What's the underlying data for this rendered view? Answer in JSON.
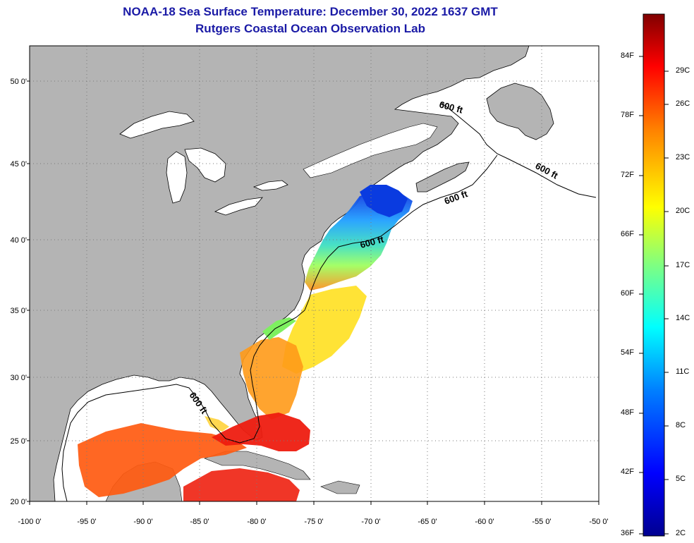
{
  "title_line1": "NOAA-18 Sea Surface Temperature:  December 30, 2022 1637 GMT",
  "title_line2": "Rutgers Coastal Ocean Observation Lab",
  "lat_ticks": [
    "50 0'",
    "45 0'",
    "40 0'",
    "35 0'",
    "30 0'",
    "25 0'",
    "20 0'"
  ],
  "lon_ticks": [
    "-100 0'",
    "-95 0'",
    "-90 0'",
    "-85 0'",
    "-80 0'",
    "-75 0'",
    "-70 0'",
    "-65 0'",
    "-60 0'",
    "-55 0'",
    "-50 0'"
  ],
  "contour_label": "600 ft",
  "colorbar": {
    "fahrenheit": [
      "84F",
      "78F",
      "72F",
      "66F",
      "60F",
      "54F",
      "48F",
      "42F",
      "36F"
    ],
    "celsius": [
      "29C",
      "26C",
      "23C",
      "20C",
      "17C",
      "14C",
      "11C",
      "8C",
      "5C",
      "2C"
    ]
  },
  "colors": {
    "land": "#b4b4b4",
    "ocean_no_data": "#ffffff",
    "title": "#1a1aa6"
  }
}
